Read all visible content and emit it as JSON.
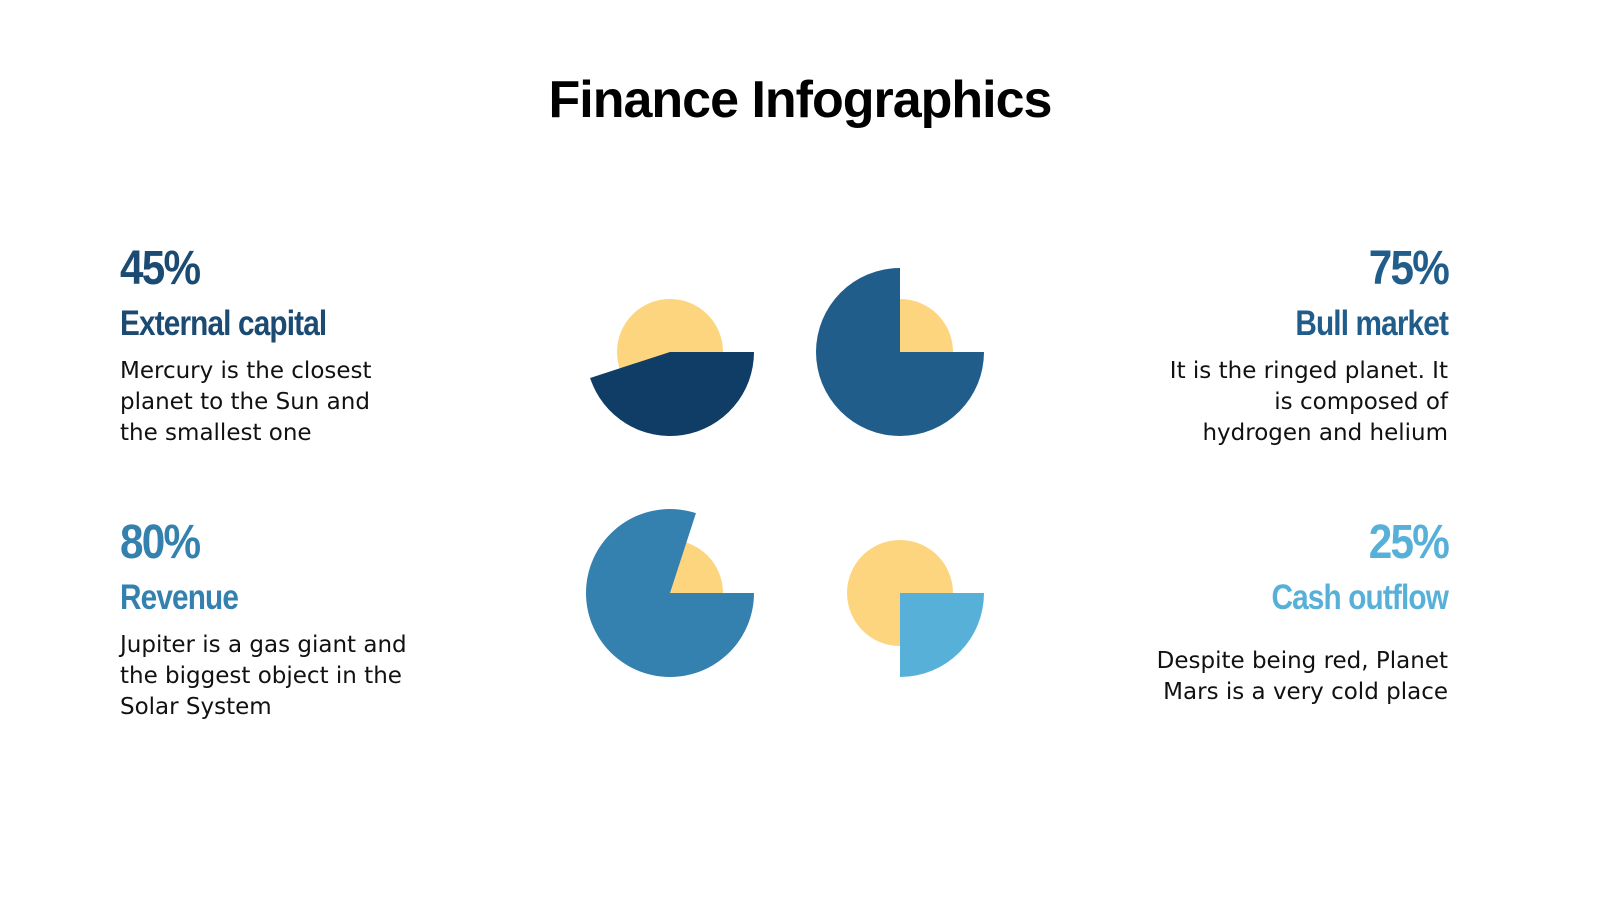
{
  "title": "Finance Infographics",
  "colors": {
    "yellow": "#fdd57e"
  },
  "items": [
    {
      "percent": "45%",
      "value": 45,
      "label": "External capital",
      "lines": [
        "Mercury is the closest",
        "planet to the Sun and",
        "the smallest one"
      ],
      "color": "#0f3d66",
      "text_color": "#1b4a72"
    },
    {
      "percent": "75%",
      "value": 75,
      "label": "Bull market",
      "lines": [
        "It is the ringed planet. It",
        "is composed of",
        "hydrogen and helium"
      ],
      "color": "#215d8a",
      "text_color": "#215d8a"
    },
    {
      "percent": "80%",
      "value": 80,
      "label": "Revenue",
      "lines": [
        "Jupiter is a gas giant and",
        "the biggest object in the",
        "Solar System"
      ],
      "color": "#3481b0",
      "text_color": "#3481b0"
    },
    {
      "percent": "25%",
      "value": 25,
      "label": "Cash outflow",
      "lines": [
        "Despite being red, Planet",
        "Mars is a very cold place"
      ],
      "color": "#56b0d8",
      "text_color": "#56b0d8"
    }
  ]
}
